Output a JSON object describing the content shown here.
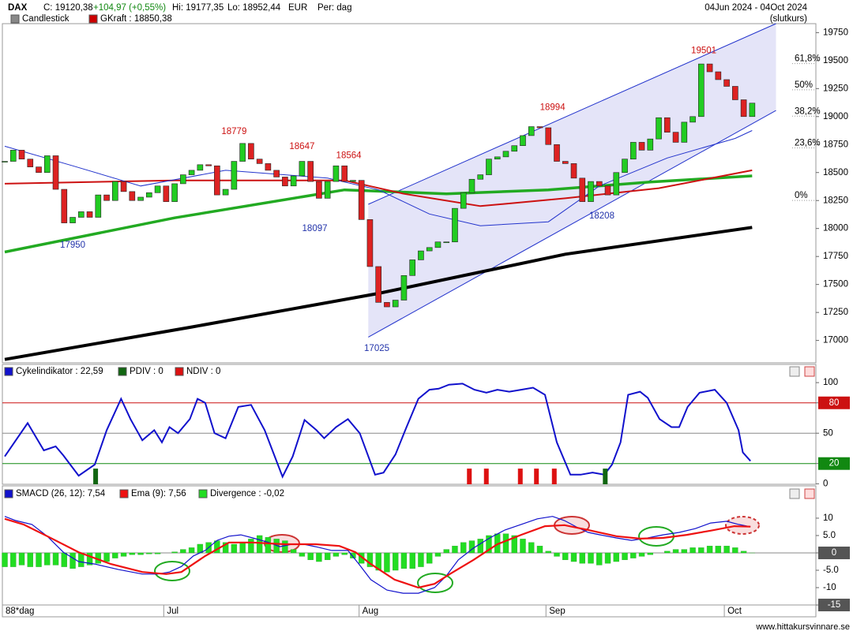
{
  "header": {
    "symbol": "DAX",
    "close": "C: 19120,38",
    "change": "+104,97 (+0,55%)",
    "high": "Hi: 19177,35",
    "low": "Lo: 18952,44",
    "currency": "EUR",
    "period": "Per: dag",
    "range": "04Jun 2024 - 04Oct 2024",
    "mode": "(slutkurs)"
  },
  "x_axis": {
    "xlim": [
      -0.28,
      95.5
    ],
    "xticks": [
      {
        "value": 19,
        "label": "Jul"
      },
      {
        "value": 42,
        "label": "Aug"
      },
      {
        "value": 64,
        "label": "Sep"
      },
      {
        "value": 85,
        "label": "Oct"
      }
    ],
    "period_count": "88*dag"
  },
  "chart_data": [
    {
      "type": "candlestick",
      "legend": [
        {
          "name": "Candlestick",
          "color": "#888888"
        },
        {
          "name": "GKraft : 18850,38",
          "color": "#cc0000"
        }
      ],
      "up_color": "#22cc22",
      "down_color": "#dd2222",
      "close": [
        18600,
        18700,
        18620,
        18550,
        18500,
        18650,
        18350,
        18050,
        18100,
        18150,
        18100,
        18300,
        18250,
        18420,
        18330,
        18250,
        18280,
        18320,
        18380,
        18240,
        18400,
        18480,
        18520,
        18570,
        18560,
        18300,
        18350,
        18600,
        18760,
        18620,
        18580,
        18520,
        18460,
        18380,
        18470,
        18600,
        18420,
        18270,
        18420,
        18560,
        18420,
        18430,
        18080,
        17660,
        17340,
        17300,
        17360,
        17580,
        17720,
        17800,
        17830,
        17880,
        17880,
        18180,
        18320,
        18440,
        18480,
        18620,
        18640,
        18690,
        18740,
        18830,
        18910,
        18900,
        18750,
        18600,
        18580,
        18450,
        18240,
        18420,
        18380,
        18300,
        18500,
        18620,
        18770,
        18700,
        18800,
        18990,
        18860,
        18770,
        18950,
        19000,
        19470,
        19400,
        19330,
        19270,
        19150,
        19000,
        19120
      ],
      "ylim": [
        16800,
        19830
      ],
      "yticks": [
        19750,
        19500,
        19250,
        19000,
        18750,
        18500,
        18250,
        18000,
        17750,
        17500,
        17250,
        17000
      ],
      "channel": {
        "x": [
          42.8,
          90.8
        ],
        "upper": [
          18216,
          19835
        ],
        "lower": [
          17030,
          19054
        ],
        "color": "#2233cc",
        "fill": "#e4e4f8"
      },
      "overlays": [
        {
          "color": "#000000",
          "width": 4,
          "x": [
            0,
            22,
            44,
            66,
            88
          ],
          "values": [
            16830,
            17120,
            17420,
            17770,
            18010
          ]
        },
        {
          "color": "#22aa22",
          "width": 3.5,
          "x": [
            0,
            20,
            40,
            52,
            64,
            76,
            88
          ],
          "values": [
            17790,
            18095,
            18345,
            18310,
            18345,
            18415,
            18470
          ]
        },
        {
          "color": "#cc1111",
          "width": 2,
          "x": [
            0,
            20,
            40,
            47,
            56,
            66,
            77,
            88
          ],
          "values": [
            18400,
            18430,
            18430,
            18310,
            18200,
            18270,
            18360,
            18520
          ]
        },
        {
          "color": "#2233cc",
          "width": 1,
          "x": [
            0,
            8,
            16,
            26,
            38,
            44,
            50,
            56,
            64,
            70,
            78,
            86,
            88
          ],
          "values": [
            18735,
            18560,
            18380,
            18520,
            18450,
            18345,
            18130,
            18025,
            18060,
            18380,
            18630,
            18805,
            18875
          ]
        }
      ],
      "fib": [
        {
          "value": 19473,
          "label": "61,8%"
        },
        {
          "value": 19239,
          "label": "50%"
        },
        {
          "value": 19004,
          "label": "38,2%"
        },
        {
          "value": 18720,
          "label": "23,6%"
        },
        {
          "value": 18251,
          "label": "0%"
        }
      ],
      "annotations": [
        {
          "x": 8,
          "value": 17950,
          "color": "#2233aa"
        },
        {
          "x": 27,
          "value": 18779,
          "color": "#cc1111"
        },
        {
          "x": 35,
          "value": 18647,
          "color": "#cc1111"
        },
        {
          "x": 40.5,
          "value": 18564,
          "color": "#cc1111"
        },
        {
          "x": 36.5,
          "value": 18097,
          "color": "#2233aa"
        },
        {
          "x": 43.8,
          "value": 17025,
          "color": "#2233aa"
        },
        {
          "x": 64.5,
          "value": 18994,
          "color": "#cc1111"
        },
        {
          "x": 82.3,
          "value": 19501,
          "color": "#cc1111"
        },
        {
          "x": 70.3,
          "value": 18208,
          "color": "#2233aa"
        }
      ]
    },
    {
      "type": "oscillator",
      "ylim": [
        -0.5,
        118
      ],
      "yticks": [
        100,
        80,
        50,
        20,
        0
      ],
      "levels": [
        {
          "value": 80,
          "color": "#cc1111"
        },
        {
          "value": 50,
          "color": "#888888"
        },
        {
          "value": 20,
          "color": "#118811"
        }
      ],
      "series": [
        {
          "name": "Cykelindikator : 22,59",
          "color": "#1111cc",
          "x": [
            0,
            2.7,
            4.6,
            6.0,
            6.9,
            8.7,
            10.6,
            12.0,
            13.7,
            14.8,
            16.2,
            17.6,
            18.5,
            19.4,
            20.4,
            21.8,
            22.7,
            23.6,
            24.7,
            26.0,
            27.5,
            29.0,
            30.6,
            32.7,
            33.9,
            35.3,
            36.7,
            37.6,
            39.0,
            40.4,
            41.8,
            43.6,
            44.6,
            46.0,
            47.3,
            48.7,
            50.0,
            51.1,
            52.3,
            53.9,
            55.3,
            56.7,
            58.0,
            59.4,
            60.8,
            62.2,
            63.6,
            65.0,
            66.6,
            67.8,
            69.2,
            70.6,
            71.5,
            72.5,
            73.4,
            74.8,
            75.7,
            77.1,
            78.5,
            79.4,
            80.4,
            81.8,
            83.6,
            85.0,
            86.4,
            86.9,
            87.8
          ],
          "values": [
            27,
            60,
            33,
            37,
            28,
            8,
            19,
            53,
            84,
            64,
            43,
            53,
            41,
            56,
            50,
            64,
            84,
            80,
            50,
            45,
            76,
            78,
            53,
            7,
            27,
            63,
            53,
            45,
            56,
            64,
            50,
            9,
            11,
            29,
            56,
            84,
            93,
            94,
            98,
            99,
            93,
            90,
            93,
            91,
            93,
            95,
            88,
            41,
            9,
            9,
            11,
            9,
            19,
            41,
            88,
            91,
            85,
            64,
            56,
            56,
            76,
            90,
            93,
            80,
            53,
            31,
            22.59
          ]
        },
        {
          "name": "PDIV : 0",
          "color": "#116611",
          "x": [
            10.7,
            70.7
          ],
          "values": [
            15,
            15
          ]
        },
        {
          "name": "NDIV : 0",
          "color": "#dd1111",
          "x": [
            54.7,
            56.7,
            60.7,
            62.6,
            64.7
          ],
          "values": [
            15,
            15,
            15,
            15,
            15
          ]
        }
      ]
    },
    {
      "type": "macd",
      "ylim": [
        -18.4,
        19.3
      ],
      "yticks": [
        10,
        {
          "value": 5,
          "label": "5.0"
        },
        0,
        {
          "value": -5,
          "label": "-5.0"
        },
        -10,
        -15
      ],
      "series": [
        {
          "name": "SMACD (26, 12): 7,54",
          "color": "#1111cc",
          "x": [
            0,
            1.3,
            3.2,
            5.0,
            6.9,
            8.7,
            10.6,
            13.4,
            16.2,
            18.0,
            19.4,
            20.8,
            22.2,
            23.6,
            25.0,
            26.4,
            27.8,
            29.2,
            31.1,
            32.4,
            33.8,
            35.2,
            36.6,
            38.5,
            40.4,
            41.7,
            43.1,
            45.0,
            46.9,
            48.7,
            50.6,
            52.0,
            53.4,
            55.2,
            57.1,
            58.9,
            60.8,
            62.7,
            64.5,
            65.9,
            67.3,
            68.7,
            70.1,
            72.0,
            73.8,
            75.7,
            77.5,
            79.4,
            81.3,
            83.1,
            85.0,
            86.4,
            87.8
          ],
          "values": [
            10.5,
            9.3,
            8.2,
            4.8,
            0.2,
            -2.5,
            -3.2,
            -4.8,
            -6.1,
            -6.1,
            -5.5,
            -3.9,
            -0.9,
            0.7,
            3.6,
            4.8,
            5.2,
            4.3,
            3.0,
            1.8,
            2.5,
            2.5,
            1.8,
            0.7,
            0.7,
            -3.2,
            -7.7,
            -10.7,
            -11.6,
            -11.6,
            -10.0,
            -6.6,
            -2.0,
            1.4,
            4.3,
            6.6,
            8.2,
            9.8,
            10.5,
            9.3,
            7.5,
            5.9,
            5.2,
            4.3,
            3.6,
            4.3,
            5.2,
            5.9,
            7.0,
            8.6,
            9.1,
            8.2,
            7.54
          ]
        },
        {
          "name": "Ema (9): 7,56",
          "color": "#ee1111",
          "x": [
            0,
            2.2,
            5.0,
            8.7,
            12.5,
            16.2,
            19.0,
            20.8,
            23.6,
            26.4,
            29.2,
            32.9,
            36.6,
            39.4,
            41.3,
            43.1,
            45.9,
            48.7,
            50.6,
            52.4,
            55.2,
            58.0,
            60.8,
            63.6,
            65.9,
            68.7,
            72.0,
            74.8,
            77.5,
            80.3,
            83.1,
            85.9,
            87.8
          ],
          "values": [
            9.8,
            8.2,
            4.8,
            0.2,
            -3.2,
            -5.5,
            -6.1,
            -5.5,
            -0.9,
            3.0,
            3.0,
            2.5,
            2.5,
            2.0,
            0.2,
            -3.2,
            -7.7,
            -10.0,
            -8.9,
            -6.1,
            -2.0,
            2.5,
            5.2,
            7.7,
            8.0,
            6.6,
            4.8,
            4.1,
            4.3,
            5.2,
            6.4,
            7.7,
            7.56
          ]
        },
        {
          "name": "Divergence : -0,02",
          "color": "#22dd22",
          "values": [
            -4,
            -4,
            -3.5,
            -4,
            -4,
            -3.5,
            -3.5,
            -4,
            -4.5,
            -4,
            -3.5,
            -3,
            -2.5,
            -1.5,
            -1,
            -0.5,
            -0.5,
            -0.3,
            -0.3,
            0,
            0.3,
            1,
            1.5,
            2.5,
            3,
            3.5,
            3,
            2.5,
            3,
            4,
            5,
            4.5,
            4,
            3.5,
            1,
            -1,
            -2,
            -2.5,
            -2,
            -1,
            -0.5,
            -1.5,
            -3,
            -4,
            -5,
            -5.5,
            -5,
            -4.5,
            -4.5,
            -4,
            -3,
            -1,
            1,
            2,
            3,
            3.5,
            4,
            5,
            5.5,
            5.5,
            5,
            4,
            3,
            2,
            0.5,
            -1,
            -2,
            -2.5,
            -3,
            -3,
            -3.5,
            -3,
            -2.5,
            -2,
            -1.5,
            -1,
            -0.5,
            0,
            0.5,
            1,
            1,
            1.5,
            1.5,
            2,
            2,
            2,
            1.5,
            0.5,
            -0.02
          ]
        }
      ]
    }
  ],
  "footer": {
    "site": "www.hittakursvinnare.se"
  }
}
